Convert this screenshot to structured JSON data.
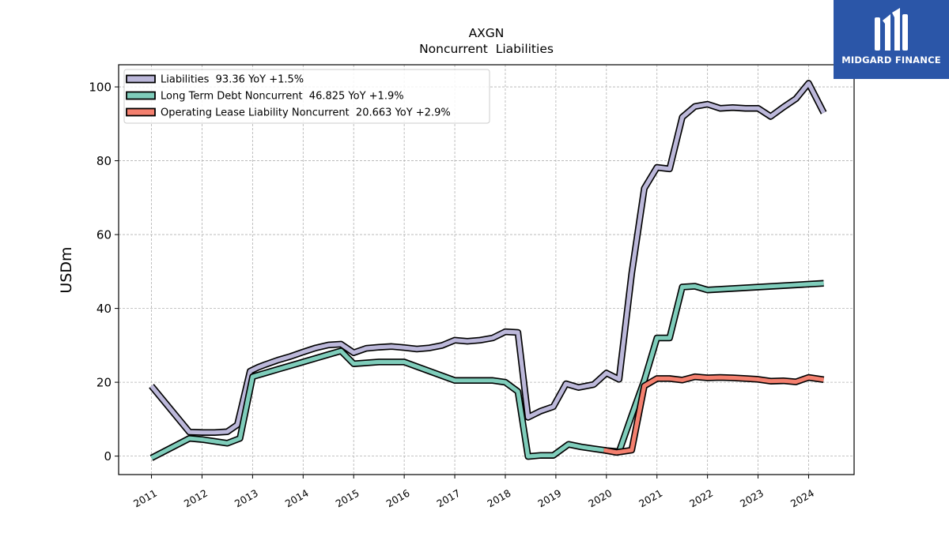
{
  "chart_data": {
    "type": "line",
    "title": "AXGN",
    "subtitle": "Noncurrent  Liabilities",
    "ylabel": "USDm",
    "xlabel": "",
    "ylim": [
      -5,
      106
    ],
    "xlim": [
      2010.35,
      2024.9
    ],
    "yticks": [
      0,
      20,
      40,
      60,
      80,
      100
    ],
    "xticks": [
      2011,
      2012,
      2013,
      2014,
      2015,
      2016,
      2017,
      2018,
      2019,
      2020,
      2021,
      2022,
      2023,
      2024
    ],
    "grid": true,
    "legend_position": "top-left",
    "series": [
      {
        "name": "Liabilities  93.36 YoY +1.5%",
        "color": "#bcb8da",
        "x": [
          2011.0,
          2011.75,
          2012.0,
          2012.25,
          2012.5,
          2012.7,
          2012.95,
          2013.1,
          2013.25,
          2013.5,
          2013.75,
          2014.0,
          2014.25,
          2014.5,
          2014.75,
          2015.0,
          2015.25,
          2015.5,
          2015.75,
          2016.0,
          2016.25,
          2016.5,
          2016.75,
          2017.0,
          2017.25,
          2017.5,
          2017.75,
          2018.0,
          2018.25,
          2018.45,
          2018.7,
          2018.95,
          2019.2,
          2019.45,
          2019.75,
          2020.0,
          2020.25,
          2020.5,
          2020.75,
          2021.0,
          2021.25,
          2021.5,
          2021.75,
          2022.0,
          2022.25,
          2022.5,
          2022.75,
          2023.0,
          2023.25,
          2023.5,
          2023.75,
          2024.0,
          2024.3
        ],
        "y": [
          19,
          6.5,
          6.4,
          6.4,
          6.6,
          8.5,
          23,
          24,
          24.8,
          26,
          27,
          28.2,
          29.3,
          30.1,
          30.3,
          28,
          29.2,
          29.5,
          29.7,
          29.4,
          29.0,
          29.3,
          30.0,
          31.4,
          31.1,
          31.4,
          32.0,
          33.7,
          33.5,
          10.5,
          12.2,
          13.4,
          19.6,
          18.6,
          19.4,
          22.5,
          20.8,
          49.5,
          72.5,
          78.2,
          77.8,
          91.8,
          94.7,
          95.3,
          94.2,
          94.4,
          94.2,
          94.2,
          92.0,
          94.5,
          96.8,
          101,
          93.0
        ]
      },
      {
        "name": "Long Term Debt Noncurrent  46.825 YoY +1.9%",
        "color": "#7fcdbb",
        "x": [
          2011.0,
          2011.75,
          2012.0,
          2012.25,
          2012.5,
          2012.75,
          2013.0,
          2013.25,
          2013.5,
          2013.75,
          2014.0,
          2014.25,
          2014.5,
          2014.75,
          2015.0,
          2015.5,
          2016.0,
          2016.5,
          2017.0,
          2017.5,
          2017.75,
          2018.0,
          2018.25,
          2018.45,
          2018.7,
          2018.95,
          2019.25,
          2019.5,
          2019.75,
          2020.0,
          2020.25,
          2020.5,
          2020.75,
          2021.0,
          2021.25,
          2021.5,
          2021.75,
          2022.0,
          2024.3
        ],
        "y": [
          -0.5,
          4.8,
          4.5,
          4.0,
          3.5,
          4.8,
          21.5,
          22.5,
          23.5,
          24.5,
          25.5,
          26.5,
          27.5,
          28.5,
          25,
          25.5,
          25.5,
          23.0,
          20.5,
          20.5,
          20.5,
          20.0,
          17.5,
          -0.1,
          0.2,
          0.2,
          3.2,
          2.5,
          2.0,
          1.5,
          1.2,
          11.0,
          20.5,
          32.0,
          32.0,
          45.8,
          46.0,
          45.0,
          46.8
        ]
      },
      {
        "name": "Operating Lease Liability Noncurrent  20.663 YoY +2.9%",
        "color": "#f4806f",
        "x": [
          2019.95,
          2020.2,
          2020.5,
          2020.75,
          2021.0,
          2021.25,
          2021.5,
          2021.75,
          2022.0,
          2022.25,
          2022.5,
          2022.75,
          2023.0,
          2023.25,
          2023.5,
          2023.75,
          2024.0,
          2024.3
        ],
        "y": [
          1.6,
          1.0,
          1.6,
          19.0,
          21.0,
          21.0,
          20.6,
          21.5,
          21.2,
          21.3,
          21.2,
          21.0,
          20.8,
          20.3,
          20.4,
          20.1,
          21.3,
          20.7
        ]
      }
    ]
  },
  "logo": {
    "text": "MIDGARD FINANCE",
    "background": "#2b56a8"
  }
}
